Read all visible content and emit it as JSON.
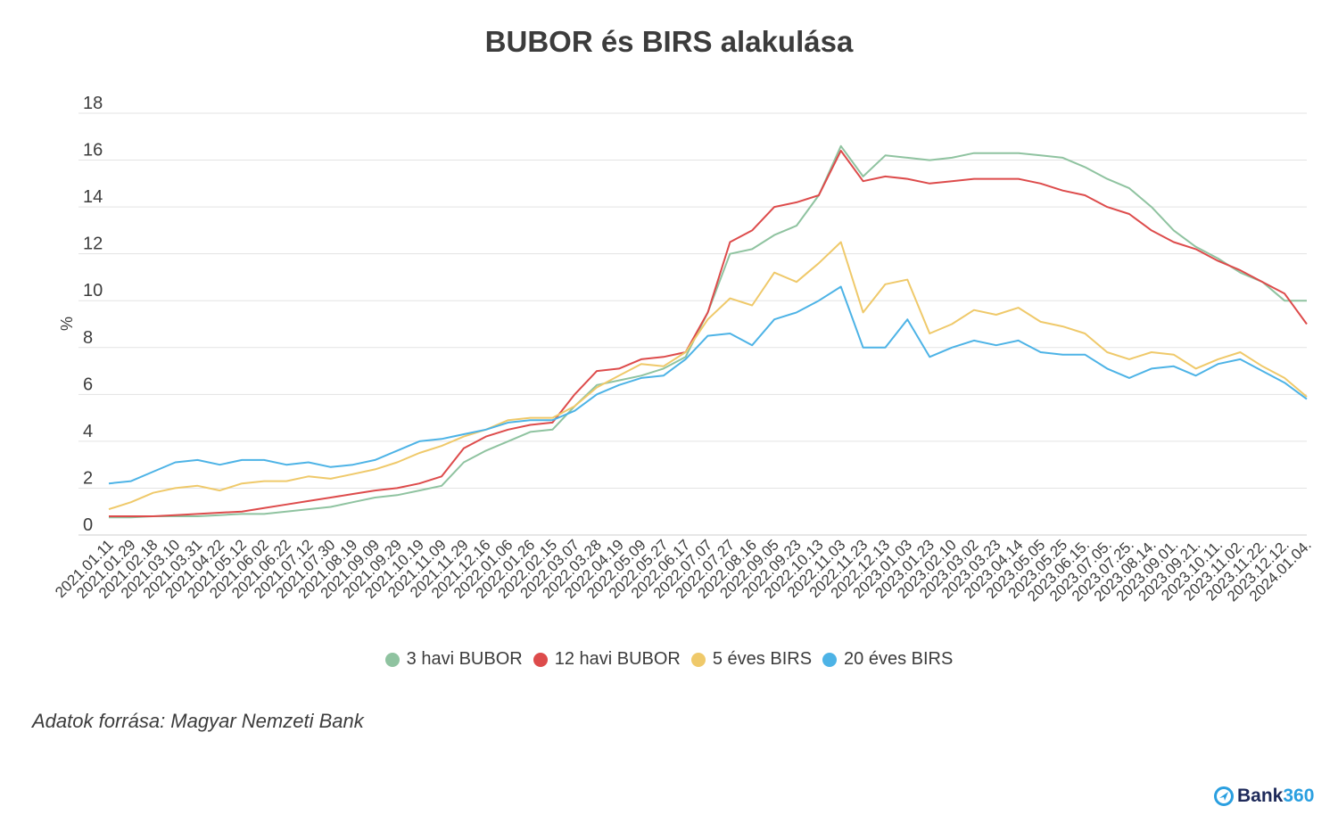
{
  "chart_data": {
    "type": "line",
    "title": "BUBOR és BIRS alakulása",
    "xlabel": "",
    "ylabel": "%",
    "ylim": [
      0,
      18
    ],
    "yticks": [
      0,
      2,
      4,
      6,
      8,
      10,
      12,
      14,
      16,
      18
    ],
    "grid": true,
    "legend_position": "bottom",
    "x": [
      "2021.01.11",
      "2021.01.29",
      "2021.02.18",
      "2021.03.10",
      "2021.03.31",
      "2021.04.22",
      "2021.05.12",
      "2021.06.02",
      "2021.06.22",
      "2021.07.12",
      "2021.07.30",
      "2021.08.19",
      "2021.09.09",
      "2021.09.29",
      "2021.10.19",
      "2021.11.09",
      "2021.11.29",
      "2021.12.16",
      "2022.01.06",
      "2022.01.26",
      "2022.02.15",
      "2022.03.07",
      "2022.03.28",
      "2022.04.19",
      "2022.05.09",
      "2022.05.27",
      "2022.06.17",
      "2022.07.07",
      "2022.07.27",
      "2022.08.16",
      "2022.09.05",
      "2022.09.23",
      "2022.10.13",
      "2022.11.03",
      "2022.11.23",
      "2022.12.13",
      "2023.01.03",
      "2023.01.23",
      "2023.02.10",
      "2023.03.02",
      "2023.03.23",
      "2023.04.14",
      "2023.05.05",
      "2023.05.25",
      "2023.06.15.",
      "2023.07.05.",
      "2023.07.25.",
      "2023.08.14.",
      "2023.09.01.",
      "2023.09.21.",
      "2023.10.11.",
      "2023.11.02.",
      "2023.11.22.",
      "2023.12.12.",
      "2024.01.04."
    ],
    "series": [
      {
        "name": "3 havi BUBOR",
        "color": "#8fc3a0",
        "values": [
          0.75,
          0.75,
          0.8,
          0.8,
          0.8,
          0.85,
          0.9,
          0.9,
          1.0,
          1.1,
          1.2,
          1.4,
          1.6,
          1.7,
          1.9,
          2.1,
          3.1,
          3.6,
          4.0,
          4.4,
          4.5,
          5.5,
          6.4,
          6.6,
          6.8,
          7.1,
          7.6,
          9.5,
          12.0,
          12.2,
          12.8,
          13.2,
          14.5,
          16.6,
          15.3,
          16.2,
          16.1,
          16.0,
          16.1,
          16.3,
          16.3,
          16.3,
          16.2,
          16.1,
          15.7,
          15.2,
          14.8,
          14.0,
          13.0,
          12.3,
          11.8,
          11.2,
          10.8,
          10.0,
          10.0
        ]
      },
      {
        "name": "12 havi BUBOR",
        "color": "#dd4b4b",
        "values": [
          0.8,
          0.8,
          0.8,
          0.85,
          0.9,
          0.95,
          1.0,
          1.15,
          1.3,
          1.45,
          1.6,
          1.75,
          1.9,
          2.0,
          2.2,
          2.5,
          3.7,
          4.2,
          4.5,
          4.7,
          4.8,
          6.0,
          7.0,
          7.1,
          7.5,
          7.6,
          7.8,
          9.5,
          12.5,
          13.0,
          14.0,
          14.2,
          14.5,
          16.4,
          15.1,
          15.3,
          15.2,
          15.0,
          15.1,
          15.2,
          15.2,
          15.2,
          15.0,
          14.7,
          14.5,
          14.0,
          13.7,
          13.0,
          12.5,
          12.2,
          11.7,
          11.3,
          10.8,
          10.3,
          9.0
        ]
      },
      {
        "name": "5 éves BIRS",
        "color": "#efc96a",
        "values": [
          1.1,
          1.4,
          1.8,
          2.0,
          2.1,
          1.9,
          2.2,
          2.3,
          2.3,
          2.5,
          2.4,
          2.6,
          2.8,
          3.1,
          3.5,
          3.8,
          4.2,
          4.5,
          4.9,
          5.0,
          5.0,
          5.5,
          6.3,
          6.8,
          7.3,
          7.2,
          7.8,
          9.2,
          10.1,
          9.8,
          11.2,
          10.8,
          11.6,
          12.5,
          9.5,
          10.7,
          10.9,
          8.6,
          9.0,
          9.6,
          9.4,
          9.7,
          9.1,
          8.9,
          8.6,
          7.8,
          7.5,
          7.8,
          7.7,
          7.1,
          7.5,
          7.8,
          7.2,
          6.7,
          5.9
        ]
      },
      {
        "name": "20 éves BIRS",
        "color": "#4db3e6",
        "values": [
          2.2,
          2.3,
          2.7,
          3.1,
          3.2,
          3.0,
          3.2,
          3.2,
          3.0,
          3.1,
          2.9,
          3.0,
          3.2,
          3.6,
          4.0,
          4.1,
          4.3,
          4.5,
          4.8,
          4.9,
          4.9,
          5.3,
          6.0,
          6.4,
          6.7,
          6.8,
          7.5,
          8.5,
          8.6,
          8.1,
          9.2,
          9.5,
          10.0,
          10.6,
          8.0,
          8.0,
          9.2,
          7.6,
          8.0,
          8.3,
          8.1,
          8.3,
          7.8,
          7.7,
          7.7,
          7.1,
          6.7,
          7.1,
          7.2,
          6.8,
          7.3,
          7.5,
          7.0,
          6.5,
          5.8
        ]
      }
    ]
  },
  "source": "Adatok forrása: Magyar Nemzeti Bank",
  "logo": {
    "part1": "Bank",
    "part2": "360"
  }
}
